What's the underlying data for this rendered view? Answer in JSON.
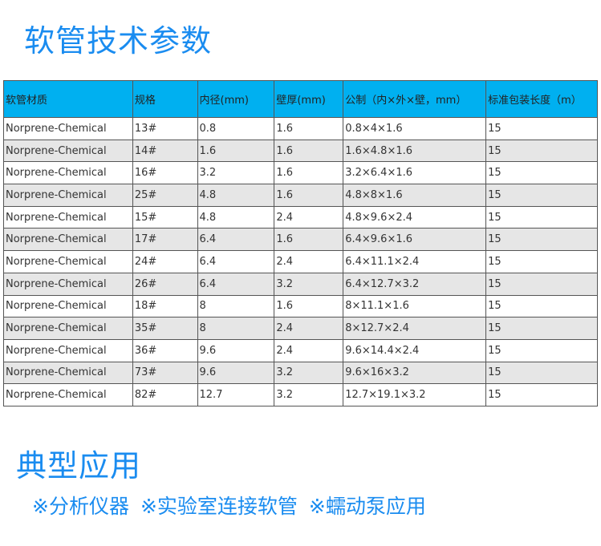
{
  "title": "软管技术参数",
  "table": {
    "headers": [
      "软管材质",
      "规格",
      "内径(mm)",
      "壁厚(mm)",
      "公制（内×外×壁，mm）",
      "标准包装长度（m）"
    ],
    "rows": [
      [
        "Norprene-Chemical",
        "13#",
        "0.8",
        "1.6",
        "0.8×4×1.6",
        "15"
      ],
      [
        "Norprene-Chemical",
        "14#",
        "1.6",
        "1.6",
        "1.6×4.8×1.6",
        "15"
      ],
      [
        "Norprene-Chemical",
        "16#",
        "3.2",
        "1.6",
        "3.2×6.4×1.6",
        "15"
      ],
      [
        "Norprene-Chemical",
        "25#",
        "4.8",
        "1.6",
        "4.8×8×1.6",
        "15"
      ],
      [
        "Norprene-Chemical",
        "15#",
        "4.8",
        "2.4",
        "4.8×9.6×2.4",
        "15"
      ],
      [
        "Norprene-Chemical",
        "17#",
        "6.4",
        "1.6",
        "6.4×9.6×1.6",
        "15"
      ],
      [
        "Norprene-Chemical",
        "24#",
        "6.4",
        "2.4",
        "6.4×11.1×2.4",
        "15"
      ],
      [
        "Norprene-Chemical",
        "26#",
        "6.4",
        "3.2",
        "6.4×12.7×3.2",
        "15"
      ],
      [
        "Norprene-Chemical",
        "18#",
        "8",
        "1.6",
        "8×11.1×1.6",
        "15"
      ],
      [
        "Norprene-Chemical",
        "35#",
        "8",
        "2.4",
        "8×12.7×2.4",
        "15"
      ],
      [
        "Norprene-Chemical",
        "36#",
        "9.6",
        "2.4",
        "9.6×14.4×2.4",
        "15"
      ],
      [
        "Norprene-Chemical",
        "73#",
        "9.6",
        "3.2",
        "9.6×16×3.2",
        "15"
      ],
      [
        "Norprene-Chemical",
        "82#",
        "12.7",
        "3.2",
        "12.7×19.1×3.2",
        "15"
      ]
    ]
  },
  "applications_title": "典型应用",
  "applications": [
    "※分析仪器",
    "※实验室连接软管",
    "※蠕动泵应用"
  ],
  "colors": {
    "accent": "#1a8cf0",
    "header_bg": "#00b0f0",
    "alt_row": "#e6e6e6"
  }
}
